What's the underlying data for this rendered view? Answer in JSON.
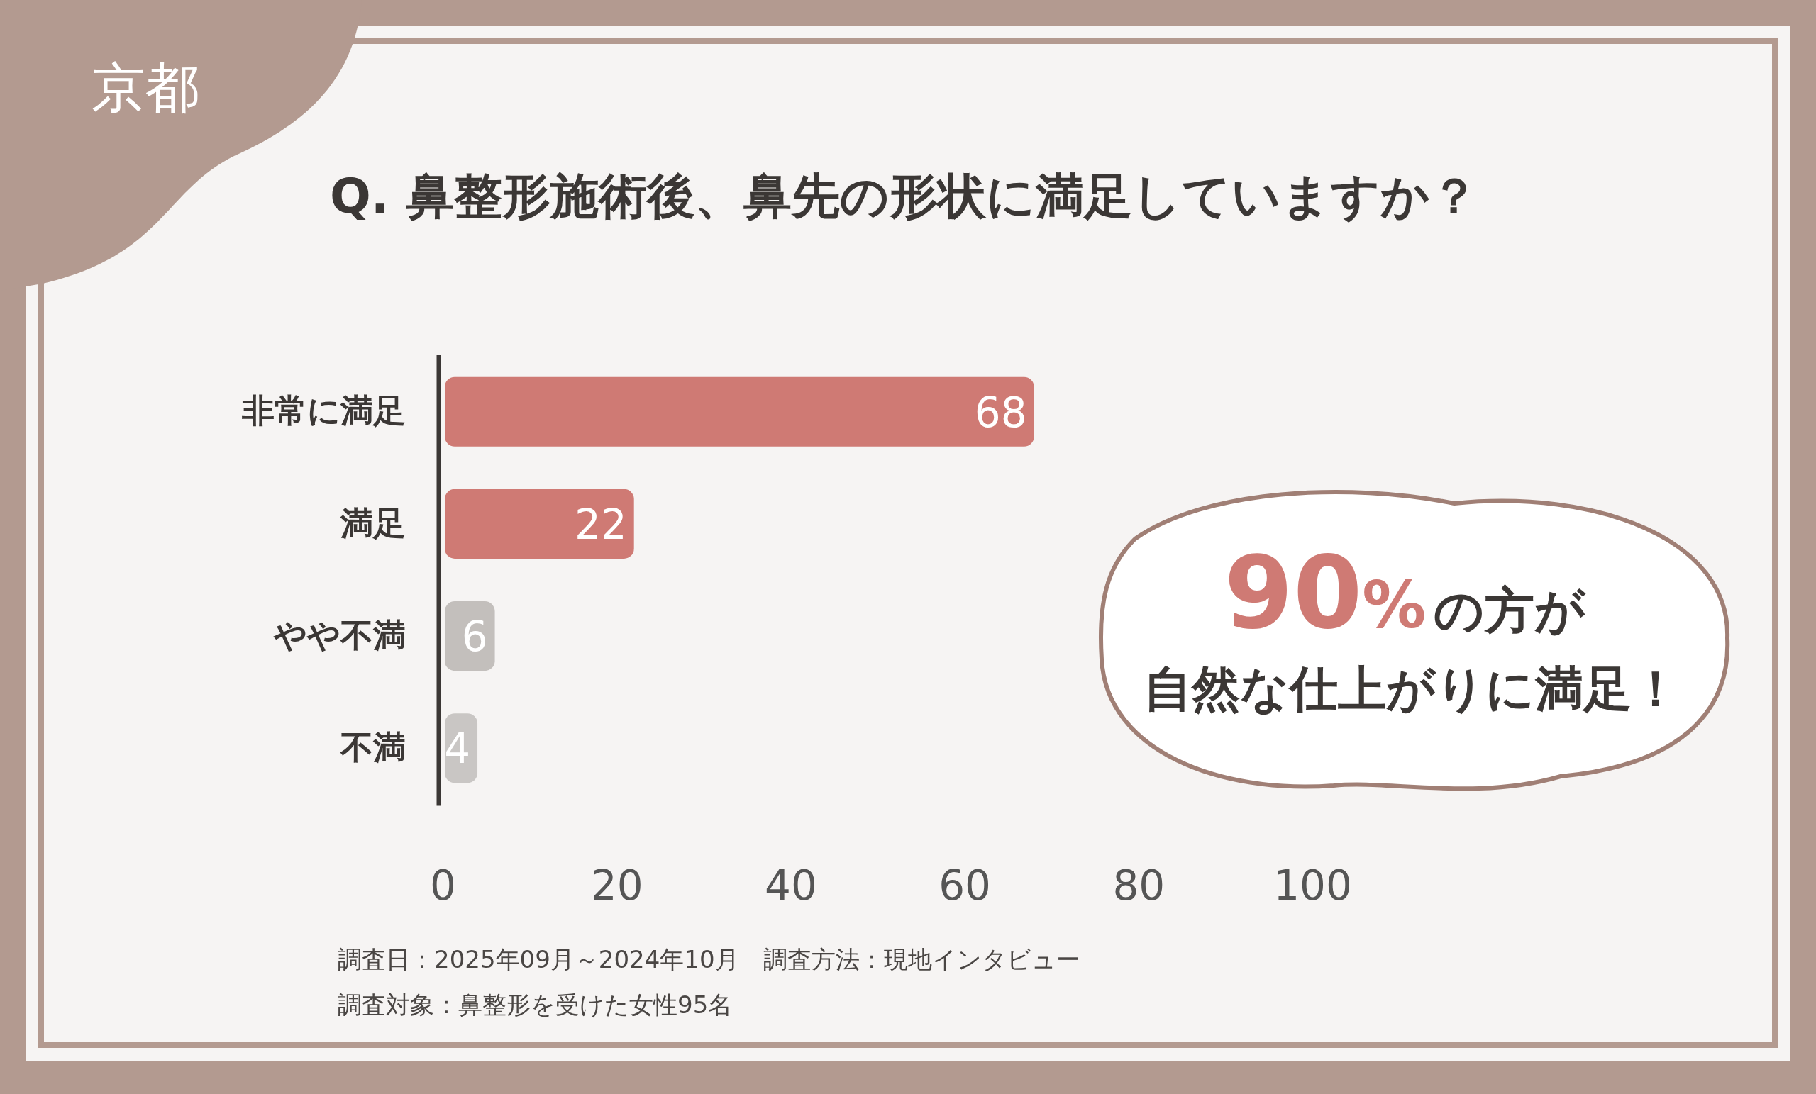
{
  "chart_data": {
    "type": "bar",
    "orientation": "horizontal",
    "subtitle": "京都",
    "title": "Q. 鼻整形施術後、鼻先の形状に満足していますか？",
    "categories": [
      "非常に満足",
      "満足",
      "やや不満",
      "不満"
    ],
    "values": [
      68,
      22,
      6,
      4
    ],
    "colors": [
      "#cf7a74",
      "#cf7a74",
      "#c3bfbc",
      "#c9c6c4"
    ],
    "xlim": [
      0,
      100
    ],
    "xticks": [
      0,
      20,
      40,
      60,
      80,
      100
    ],
    "data_labels": true,
    "annotations": [
      "90%の方が",
      "自然な仕上がりに満足！",
      "調査日：2025年09月～2024年10月　調査方法：現地インタビュー",
      "調査対象：鼻整形を受けた女性95名"
    ]
  }
}
